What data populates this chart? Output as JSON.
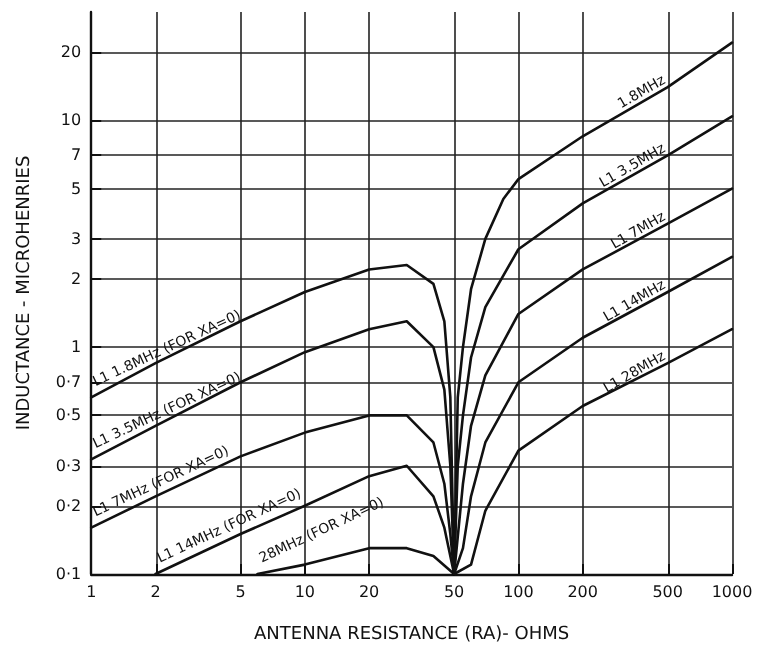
{
  "chart_data": {
    "type": "line",
    "xlabel": "ANTENNA RESISTANCE (RA)- OHMS",
    "ylabel": "INDUCTANCE - MICROHENRIES",
    "log": "xy",
    "grid": true,
    "legend": false,
    "marker": "none",
    "line_style": "solid",
    "xlim": [
      1,
      1000
    ],
    "xticks": [
      1,
      2,
      5,
      10,
      20,
      50,
      100,
      200,
      500,
      1000
    ],
    "ylim": [
      0.1,
      30
    ],
    "yticks": [
      {
        "value": 0.1,
        "label": "0·1"
      },
      {
        "value": 0.2,
        "label": "0·2"
      },
      {
        "value": 0.3,
        "label": "0·3"
      },
      {
        "value": 0.5,
        "label": "0·5"
      },
      {
        "value": 0.7,
        "label": "0·7"
      },
      1,
      2,
      3,
      5,
      7,
      10,
      20
    ],
    "series": [
      {
        "name": "L1 1.8MHz (FOR XA=0)",
        "color": "#111111",
        "x": [
          1,
          2,
          5,
          10,
          20,
          30,
          40,
          45,
          48,
          50
        ],
        "values": [
          0.6,
          0.85,
          1.3,
          1.75,
          2.2,
          2.3,
          1.9,
          1.3,
          0.6,
          0.1
        ]
      },
      {
        "name": "L1 3.5MHz (FOR XA=0)",
        "color": "#111111",
        "x": [
          1,
          2,
          5,
          10,
          20,
          30,
          40,
          45,
          48,
          50
        ],
        "values": [
          0.32,
          0.45,
          0.7,
          0.95,
          1.2,
          1.3,
          1.0,
          0.65,
          0.3,
          0.1
        ]
      },
      {
        "name": "L1 7MHz (FOR XA=0)",
        "color": "#111111",
        "x": [
          1,
          2,
          5,
          10,
          20,
          30,
          40,
          45,
          48,
          50
        ],
        "values": [
          0.16,
          0.22,
          0.33,
          0.42,
          0.5,
          0.5,
          0.38,
          0.25,
          0.15,
          0.1
        ]
      },
      {
        "name": "L1 14MHz (FOR XA=0)",
        "color": "#111111",
        "x": [
          2,
          5,
          10,
          20,
          30,
          40,
          45,
          50
        ],
        "values": [
          0.1,
          0.15,
          0.2,
          0.27,
          0.3,
          0.22,
          0.16,
          0.1
        ]
      },
      {
        "name": "28MHz (FOR XA=0)",
        "color": "#111111",
        "x": [
          6,
          10,
          20,
          30,
          40,
          50
        ],
        "values": [
          0.1,
          0.11,
          0.13,
          0.13,
          0.12,
          0.1
        ]
      },
      {
        "name": "1.8MHz",
        "color": "#111111",
        "x": [
          50,
          52,
          55,
          60,
          70,
          85,
          100,
          200,
          500,
          1000
        ],
        "values": [
          0.1,
          0.6,
          1.0,
          1.8,
          3,
          4.5,
          5.5,
          8.5,
          14,
          22
        ]
      },
      {
        "name": "L1 3.5MHz",
        "color": "#111111",
        "x": [
          50,
          52,
          55,
          60,
          70,
          100,
          200,
          500,
          1000
        ],
        "values": [
          0.1,
          0.3,
          0.5,
          0.9,
          1.5,
          2.7,
          4.3,
          7,
          10.4
        ]
      },
      {
        "name": "L1 7MHz",
        "color": "#111111",
        "x": [
          50,
          55,
          60,
          70,
          100,
          200,
          500,
          1000
        ],
        "values": [
          0.1,
          0.25,
          0.45,
          0.75,
          1.4,
          2.2,
          3.5,
          5
        ]
      },
      {
        "name": "L1 14MHz",
        "color": "#111111",
        "x": [
          50,
          55,
          60,
          70,
          100,
          200,
          500,
          1000
        ],
        "values": [
          0.1,
          0.13,
          0.22,
          0.38,
          0.7,
          1.1,
          1.75,
          2.5
        ]
      },
      {
        "name": "L1 28MHz",
        "color": "#111111",
        "x": [
          50,
          60,
          70,
          100,
          200,
          500,
          1000
        ],
        "values": [
          0.1,
          0.11,
          0.19,
          0.35,
          0.55,
          0.85,
          1.2
        ]
      }
    ]
  }
}
